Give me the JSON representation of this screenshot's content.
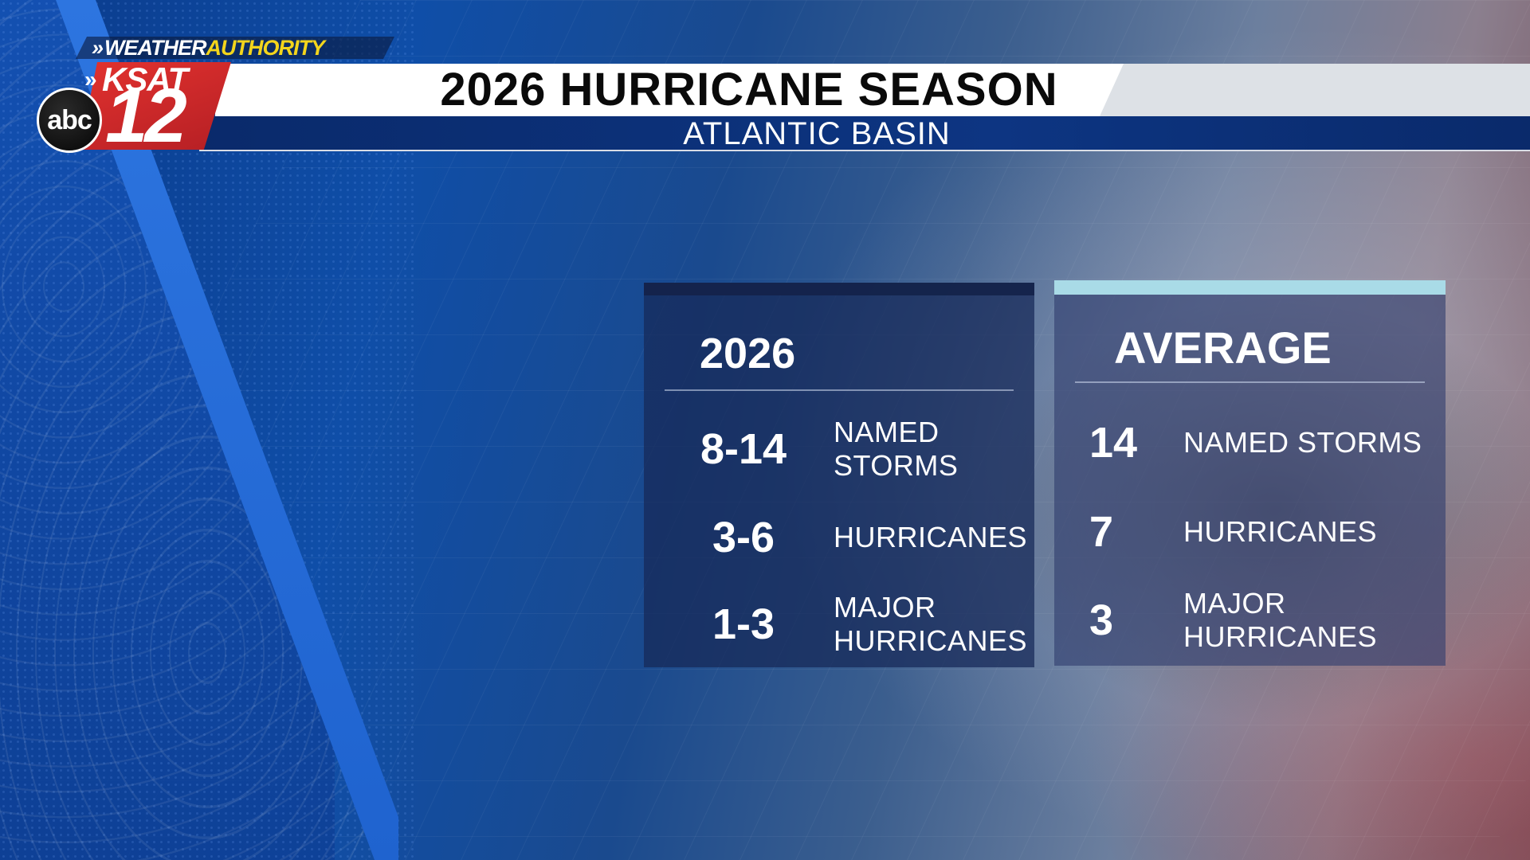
{
  "branding": {
    "weather_prefix": "WEATHER",
    "weather_suffix": "AUTHORITY",
    "station_call": "KSAT",
    "station_number": "12",
    "network": "abc",
    "colors": {
      "brand_red": "#d62a2a",
      "brand_yellow": "#f3d51c",
      "navy": "#0d3582"
    }
  },
  "header": {
    "title": "2026 HURRICANE SEASON",
    "subtitle": "ATLANTIC BASIN"
  },
  "panels": [
    {
      "heading": "2026",
      "rows": [
        {
          "value": "8-14",
          "label": "NAMED STORMS"
        },
        {
          "value": "3-6",
          "label": "HURRICANES"
        },
        {
          "value": "1-3",
          "label": "MAJOR HURRICANES"
        }
      ]
    },
    {
      "heading": "AVERAGE",
      "accent_color": "#a9dbe7",
      "rows": [
        {
          "value": "14",
          "label": "NAMED STORMS"
        },
        {
          "value": "7",
          "label": "HURRICANES"
        },
        {
          "value": "3",
          "label": "MAJOR HURRICANES"
        }
      ]
    }
  ]
}
